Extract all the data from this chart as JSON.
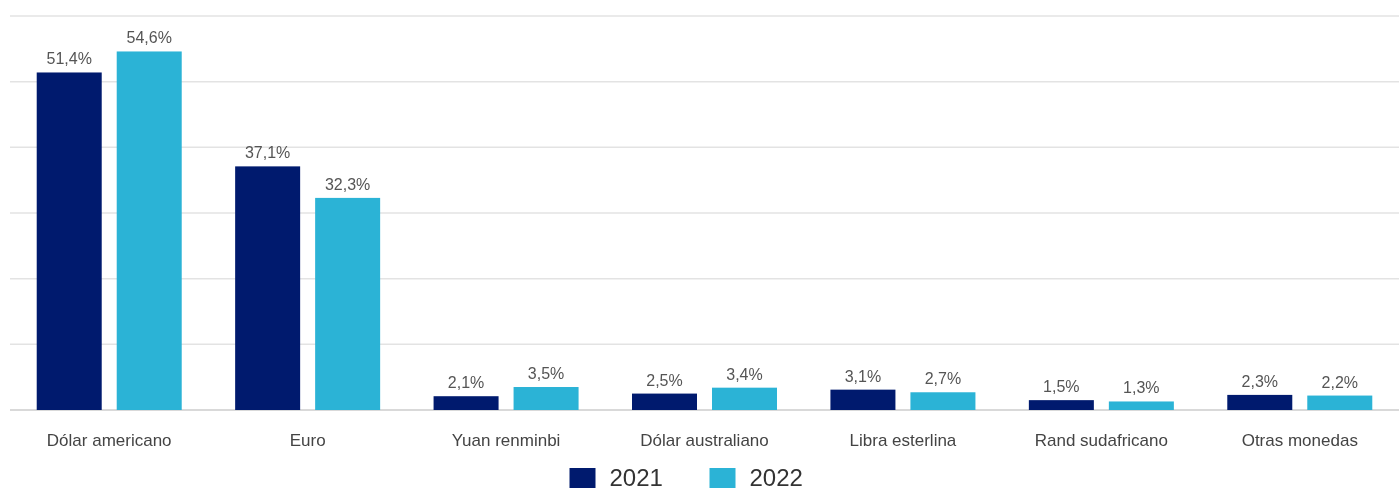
{
  "chart_data": {
    "type": "bar",
    "categories": [
      "Dólar americano",
      "Euro",
      "Yuan renminbi",
      "Dólar australiano",
      "Libra esterlina",
      "Rand sudafricano",
      "Otras monedas"
    ],
    "series": [
      {
        "name": "2021",
        "color": "#001a6e",
        "values": [
          51.4,
          37.1,
          2.1,
          2.5,
          3.1,
          1.5,
          2.3
        ],
        "value_labels": [
          "51,4%",
          "37,1%",
          "2,1%",
          "2,5%",
          "3,1%",
          "1,5%",
          "2,3%"
        ]
      },
      {
        "name": "2022",
        "color": "#2bb3d6",
        "values": [
          54.6,
          32.3,
          3.5,
          3.4,
          2.7,
          1.3,
          2.2
        ],
        "value_labels": [
          "54,6%",
          "32,3%",
          "3,5%",
          "3,4%",
          "2,7%",
          "1,3%",
          "2,2%"
        ]
      }
    ],
    "ylim": [
      0,
      60
    ],
    "yticks": [
      {
        "value": 0,
        "label": null
      },
      {
        "value": 10,
        "label": null
      },
      {
        "value": 20,
        "label": null
      },
      {
        "value": 30,
        "label": null
      },
      {
        "value": 40,
        "label": null
      },
      {
        "value": 50,
        "label": null
      },
      {
        "value": 60,
        "label": null
      }
    ],
    "grid": "y",
    "legend": "bottom",
    "tick_labels": "x"
  }
}
